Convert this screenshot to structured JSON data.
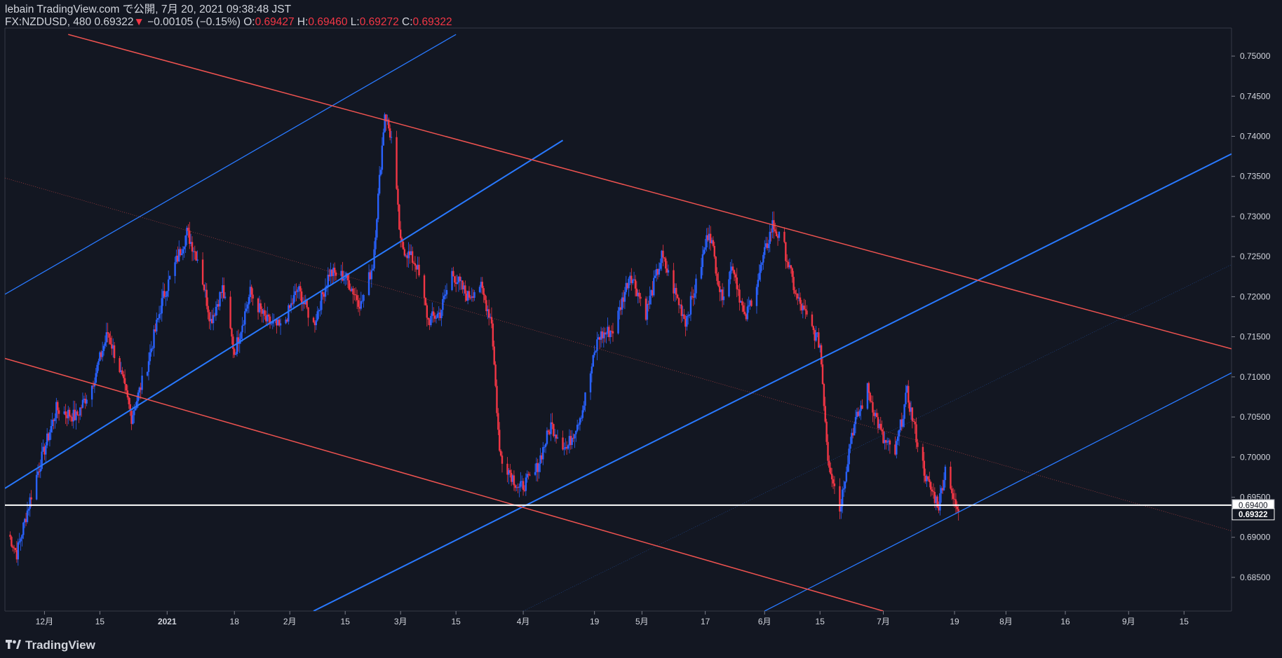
{
  "header": {
    "published": "lebain TradingView.com で公開, 7月 20, 2021 09:38:48 JST",
    "symbol": "FX:NZDUSD, 480",
    "last": "0.69322",
    "change_arrow": "▼",
    "change": "−0.00105 (−0.15%)",
    "o_label": "O:",
    "o": "0.69427",
    "h_label": "H:",
    "h": "0.69460",
    "l_label": "L:",
    "l": "0.69272",
    "c_label": "C:",
    "c": "0.69322"
  },
  "footer": {
    "brand": "TradingView",
    "logo_icon": "tradingview-logo-icon"
  },
  "colors": {
    "background": "#131722",
    "up": "#2962ff",
    "down": "#f23645",
    "channel_blue": "#2979ff",
    "channel_red": "#ef5350",
    "grid_text": "#d1d4dc"
  },
  "chart_data": {
    "type": "candlestick",
    "y_axis": {
      "ylim": [
        0.6808,
        0.7535
      ],
      "ticks": [
        "0.75000",
        "0.74500",
        "0.74000",
        "0.73500",
        "0.73000",
        "0.72500",
        "0.72000",
        "0.71500",
        "0.71000",
        "0.70500",
        "0.70000",
        "0.69500",
        "0.69000",
        "0.68500"
      ]
    },
    "x_axis": {
      "ticks": [
        "12月",
        "15",
        "2021",
        "18",
        "2月",
        "15",
        "3月",
        "15",
        "4月",
        "19",
        "5月",
        "17",
        "6月",
        "15",
        "7月",
        "19",
        "8月",
        "16",
        "9月",
        "15"
      ]
    },
    "price_labels": [
      {
        "text": "0.69400",
        "value": 0.694,
        "style": "horizontal-line"
      },
      {
        "text": "0.69322",
        "value": 0.69322,
        "style": "last-price"
      }
    ],
    "horizontal_line": 0.694,
    "trend_lines": [
      {
        "color": "blue",
        "width": 2,
        "from": {
          "x": "2020-11-21",
          "y": 0.6961
        },
        "to": {
          "x": "2021-04-11",
          "y": 0.7395
        }
      },
      {
        "color": "blue",
        "width": 1.3,
        "from": {
          "x": "2020-11-21",
          "y": 0.7203
        },
        "to": {
          "x": "2021-03-15",
          "y": 0.7527
        }
      },
      {
        "color": "blue",
        "width": 2,
        "from": {
          "x": "2021-02-07",
          "y": 0.6808
        },
        "to": {
          "x": "2021-09-27",
          "y": 0.7378
        }
      },
      {
        "color": "blue",
        "width": 1.3,
        "from": {
          "x": "2021-06-01",
          "y": 0.6808
        },
        "to": {
          "x": "2021-09-27",
          "y": 0.7105
        }
      },
      {
        "color": "red",
        "width": 1.5,
        "from": {
          "x": "2020-12-07",
          "y": 0.7527
        },
        "to": {
          "x": "2021-09-27",
          "y": 0.7135
        }
      },
      {
        "color": "red",
        "width": 1.5,
        "from": {
          "x": "2020-11-21",
          "y": 0.7123
        },
        "to": {
          "x": "2021-07-01",
          "y": 0.6808
        }
      },
      {
        "color": "red-dotted",
        "width": 0.7,
        "from": {
          "x": "2020-11-21",
          "y": 0.7348
        },
        "to": {
          "x": "2021-09-27",
          "y": 0.6908
        }
      },
      {
        "color": "blue-dotted",
        "width": 0.5,
        "from": {
          "x": "2021-04-01",
          "y": 0.6808
        },
        "to": {
          "x": "2021-09-27",
          "y": 0.724
        }
      }
    ],
    "series": [
      {
        "name": "FX:NZDUSD",
        "anchors": [
          [
            "2020-11-21",
            0.6915
          ],
          [
            "2020-11-24",
            0.688
          ],
          [
            "2020-11-28",
            0.696
          ],
          [
            "2020-12-04",
            0.706
          ],
          [
            "2020-12-09",
            0.705
          ],
          [
            "2020-12-13",
            0.709
          ],
          [
            "2020-12-17",
            0.7155
          ],
          [
            "2020-12-20",
            0.711
          ],
          [
            "2020-12-23",
            0.705
          ],
          [
            "2020-12-27",
            0.7115
          ],
          [
            "2020-12-31",
            0.72
          ],
          [
            "2021-01-06",
            0.728
          ],
          [
            "2021-01-09",
            0.7245
          ],
          [
            "2021-01-12",
            0.717
          ],
          [
            "2021-01-15",
            0.721
          ],
          [
            "2021-01-18",
            0.713
          ],
          [
            "2021-01-22",
            0.7205
          ],
          [
            "2021-01-26",
            0.717
          ],
          [
            "2021-01-30",
            0.716
          ],
          [
            "2021-02-03",
            0.721
          ],
          [
            "2021-02-07",
            0.7165
          ],
          [
            "2021-02-11",
            0.723
          ],
          [
            "2021-02-15",
            0.7225
          ],
          [
            "2021-02-19",
            0.719
          ],
          [
            "2021-02-22",
            0.724
          ],
          [
            "2021-02-25",
            0.743
          ],
          [
            "2021-02-27",
            0.739
          ],
          [
            "2021-03-01",
            0.7265
          ],
          [
            "2021-03-05",
            0.724
          ],
          [
            "2021-03-08",
            0.717
          ],
          [
            "2021-03-11",
            0.718
          ],
          [
            "2021-03-14",
            0.723
          ],
          [
            "2021-03-18",
            0.72
          ],
          [
            "2021-03-21",
            0.7215
          ],
          [
            "2021-03-24",
            0.717
          ],
          [
            "2021-03-26",
            0.7005
          ],
          [
            "2021-03-31",
            0.696
          ],
          [
            "2021-04-04",
            0.698
          ],
          [
            "2021-04-08",
            0.704
          ],
          [
            "2021-04-12",
            0.701
          ],
          [
            "2021-04-16",
            0.706
          ],
          [
            "2021-04-20",
            0.715
          ],
          [
            "2021-04-24",
            0.716
          ],
          [
            "2021-04-28",
            0.723
          ],
          [
            "2021-05-02",
            0.718
          ],
          [
            "2021-05-06",
            0.725
          ],
          [
            "2021-05-09",
            0.721
          ],
          [
            "2021-05-12",
            0.717
          ],
          [
            "2021-05-15",
            0.722
          ],
          [
            "2021-05-18",
            0.7285
          ],
          [
            "2021-05-21",
            0.72
          ],
          [
            "2021-05-24",
            0.724
          ],
          [
            "2021-05-27",
            0.717
          ],
          [
            "2021-05-31",
            0.7235
          ],
          [
            "2021-06-03",
            0.729
          ],
          [
            "2021-06-06",
            0.726
          ],
          [
            "2021-06-09",
            0.72
          ],
          [
            "2021-06-12",
            0.717
          ],
          [
            "2021-06-15",
            0.714
          ],
          [
            "2021-06-17",
            0.7
          ],
          [
            "2021-06-20",
            0.6935
          ],
          [
            "2021-06-23",
            0.703
          ],
          [
            "2021-06-27",
            0.7085
          ],
          [
            "2021-07-01",
            0.702
          ],
          [
            "2021-07-04",
            0.7005
          ],
          [
            "2021-07-07",
            0.708
          ],
          [
            "2021-07-10",
            0.701
          ],
          [
            "2021-07-12",
            0.697
          ],
          [
            "2021-07-15",
            0.694
          ],
          [
            "2021-07-17",
            0.6995
          ],
          [
            "2021-07-19",
            0.694
          ],
          [
            "2021-07-20",
            0.69322
          ]
        ]
      }
    ]
  }
}
